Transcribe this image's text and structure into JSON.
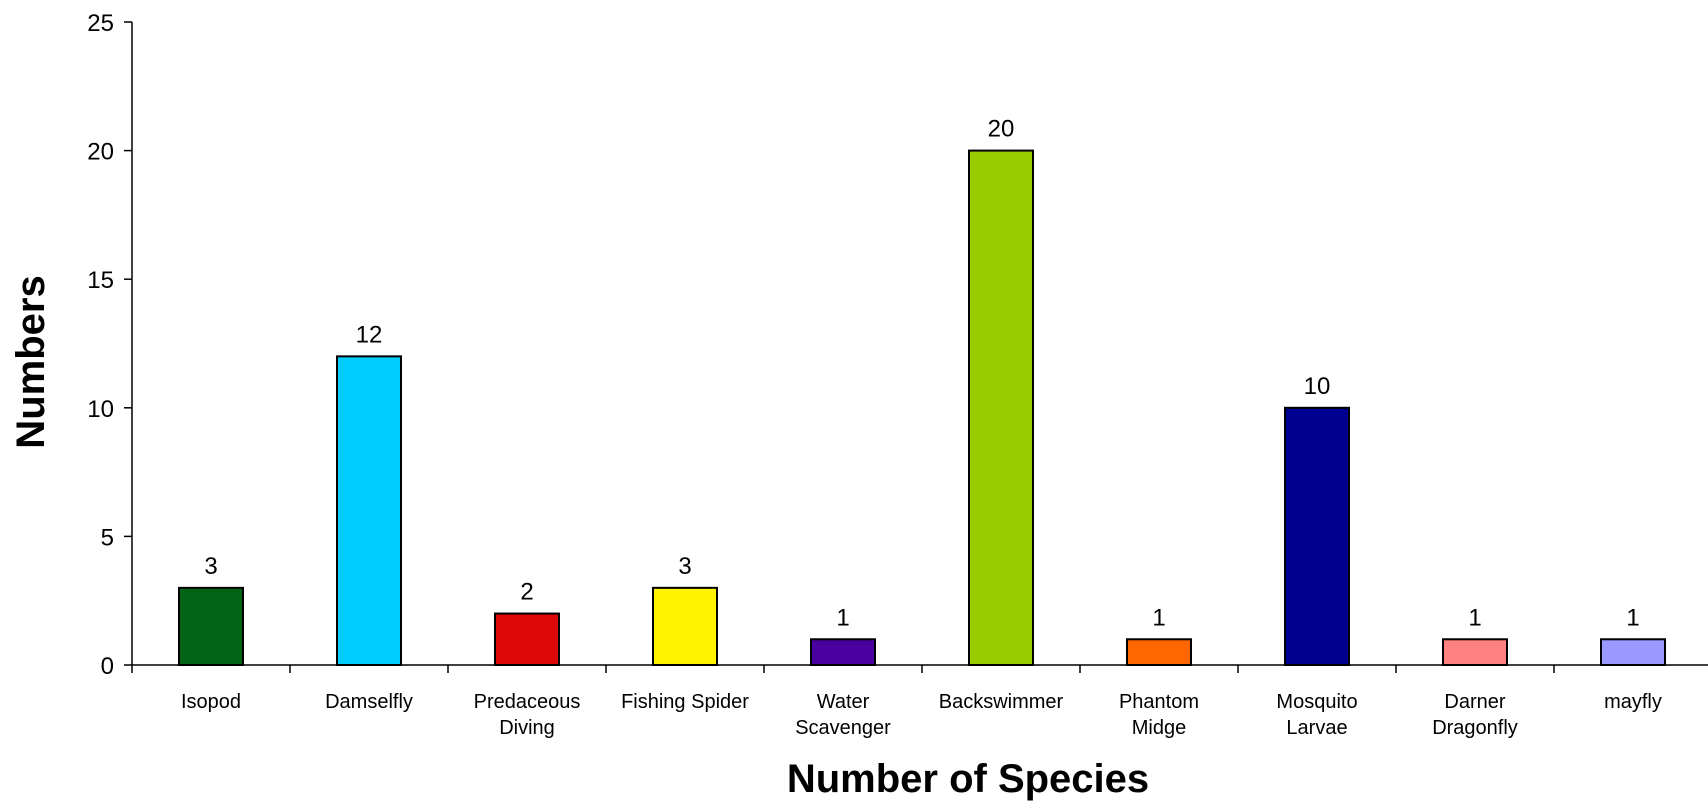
{
  "chart_data": {
    "type": "bar",
    "title": "",
    "xlabel": "Number of Species",
    "ylabel": "Numbers",
    "categories": [
      [
        "Isopod"
      ],
      [
        "Damselfly"
      ],
      [
        "Predaceous",
        "Diving"
      ],
      [
        "Fishing Spider"
      ],
      [
        "Water",
        "Scavenger"
      ],
      [
        "Backswimmer"
      ],
      [
        "Phantom",
        "Midge"
      ],
      [
        "Mosquito",
        "Larvae"
      ],
      [
        "Darner",
        "Dragonfly"
      ],
      [
        "mayfly"
      ]
    ],
    "values": [
      3,
      12,
      2,
      3,
      1,
      20,
      1,
      10,
      1,
      1
    ],
    "data_labels": [
      "3",
      "12",
      "2",
      "3",
      "1",
      "20",
      "1",
      "10",
      "1",
      "1"
    ],
    "colors": [
      "#006414",
      "#00CCFF",
      "#DD0808",
      "#FFF200",
      "#4B00A0",
      "#99CC00",
      "#FF6600",
      "#000090",
      "#FF8080",
      "#9999FF"
    ],
    "ylim": [
      0,
      25
    ],
    "yticks": [
      "0",
      "5",
      "10",
      "15",
      "20",
      "25"
    ],
    "grid": false,
    "legend": "none"
  }
}
